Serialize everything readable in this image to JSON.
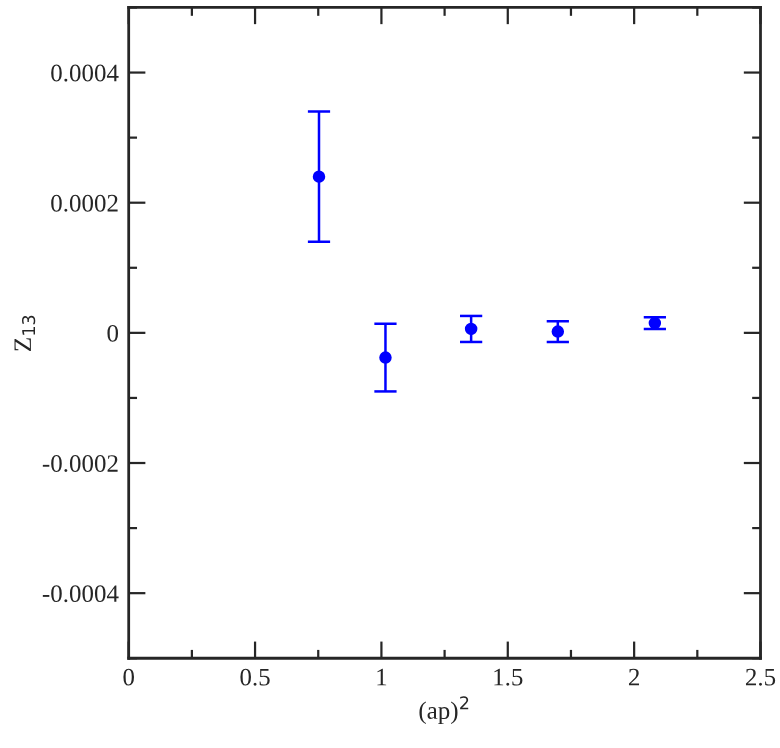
{
  "chart_data": {
    "type": "scatter",
    "xlabel": "(ap)$^{2}$",
    "ylabel": "Z$_{13}$",
    "x": [
      0.753,
      1.016,
      1.355,
      1.698,
      2.082
    ],
    "series": [
      {
        "color": "#0000ff",
        "values": [
          0.00024,
          -3.8e-05,
          6e-06,
          2e-06,
          1.5e-05
        ],
        "errors": [
          0.0001,
          5.2e-05,
          2e-05,
          1.6e-05,
          9e-06
        ]
      }
    ],
    "marker": "circle",
    "xlim": [
      0,
      2.5
    ],
    "ylim": [
      -0.0005,
      0.0005
    ],
    "xticks": [
      0,
      {
        "value": 0.25,
        "label": null
      },
      0.5,
      {
        "value": 0.75,
        "label": null
      },
      1,
      {
        "value": 1.25,
        "label": null
      },
      1.5,
      {
        "value": 1.75,
        "label": null
      },
      2,
      {
        "value": 2.25,
        "label": null
      },
      2.5
    ],
    "yticks": [
      {
        "value": -0.0005,
        "label": null
      },
      -0.0004,
      {
        "value": -0.0003,
        "label": null
      },
      -0.0002,
      {
        "value": -0.0001,
        "label": null
      },
      0,
      {
        "value": 0.0001,
        "label": null
      },
      0.0002,
      {
        "value": 0.0003,
        "label": null
      },
      0.0004,
      {
        "value": 0.0005,
        "label": null
      }
    ],
    "grid": false,
    "legend": false
  }
}
